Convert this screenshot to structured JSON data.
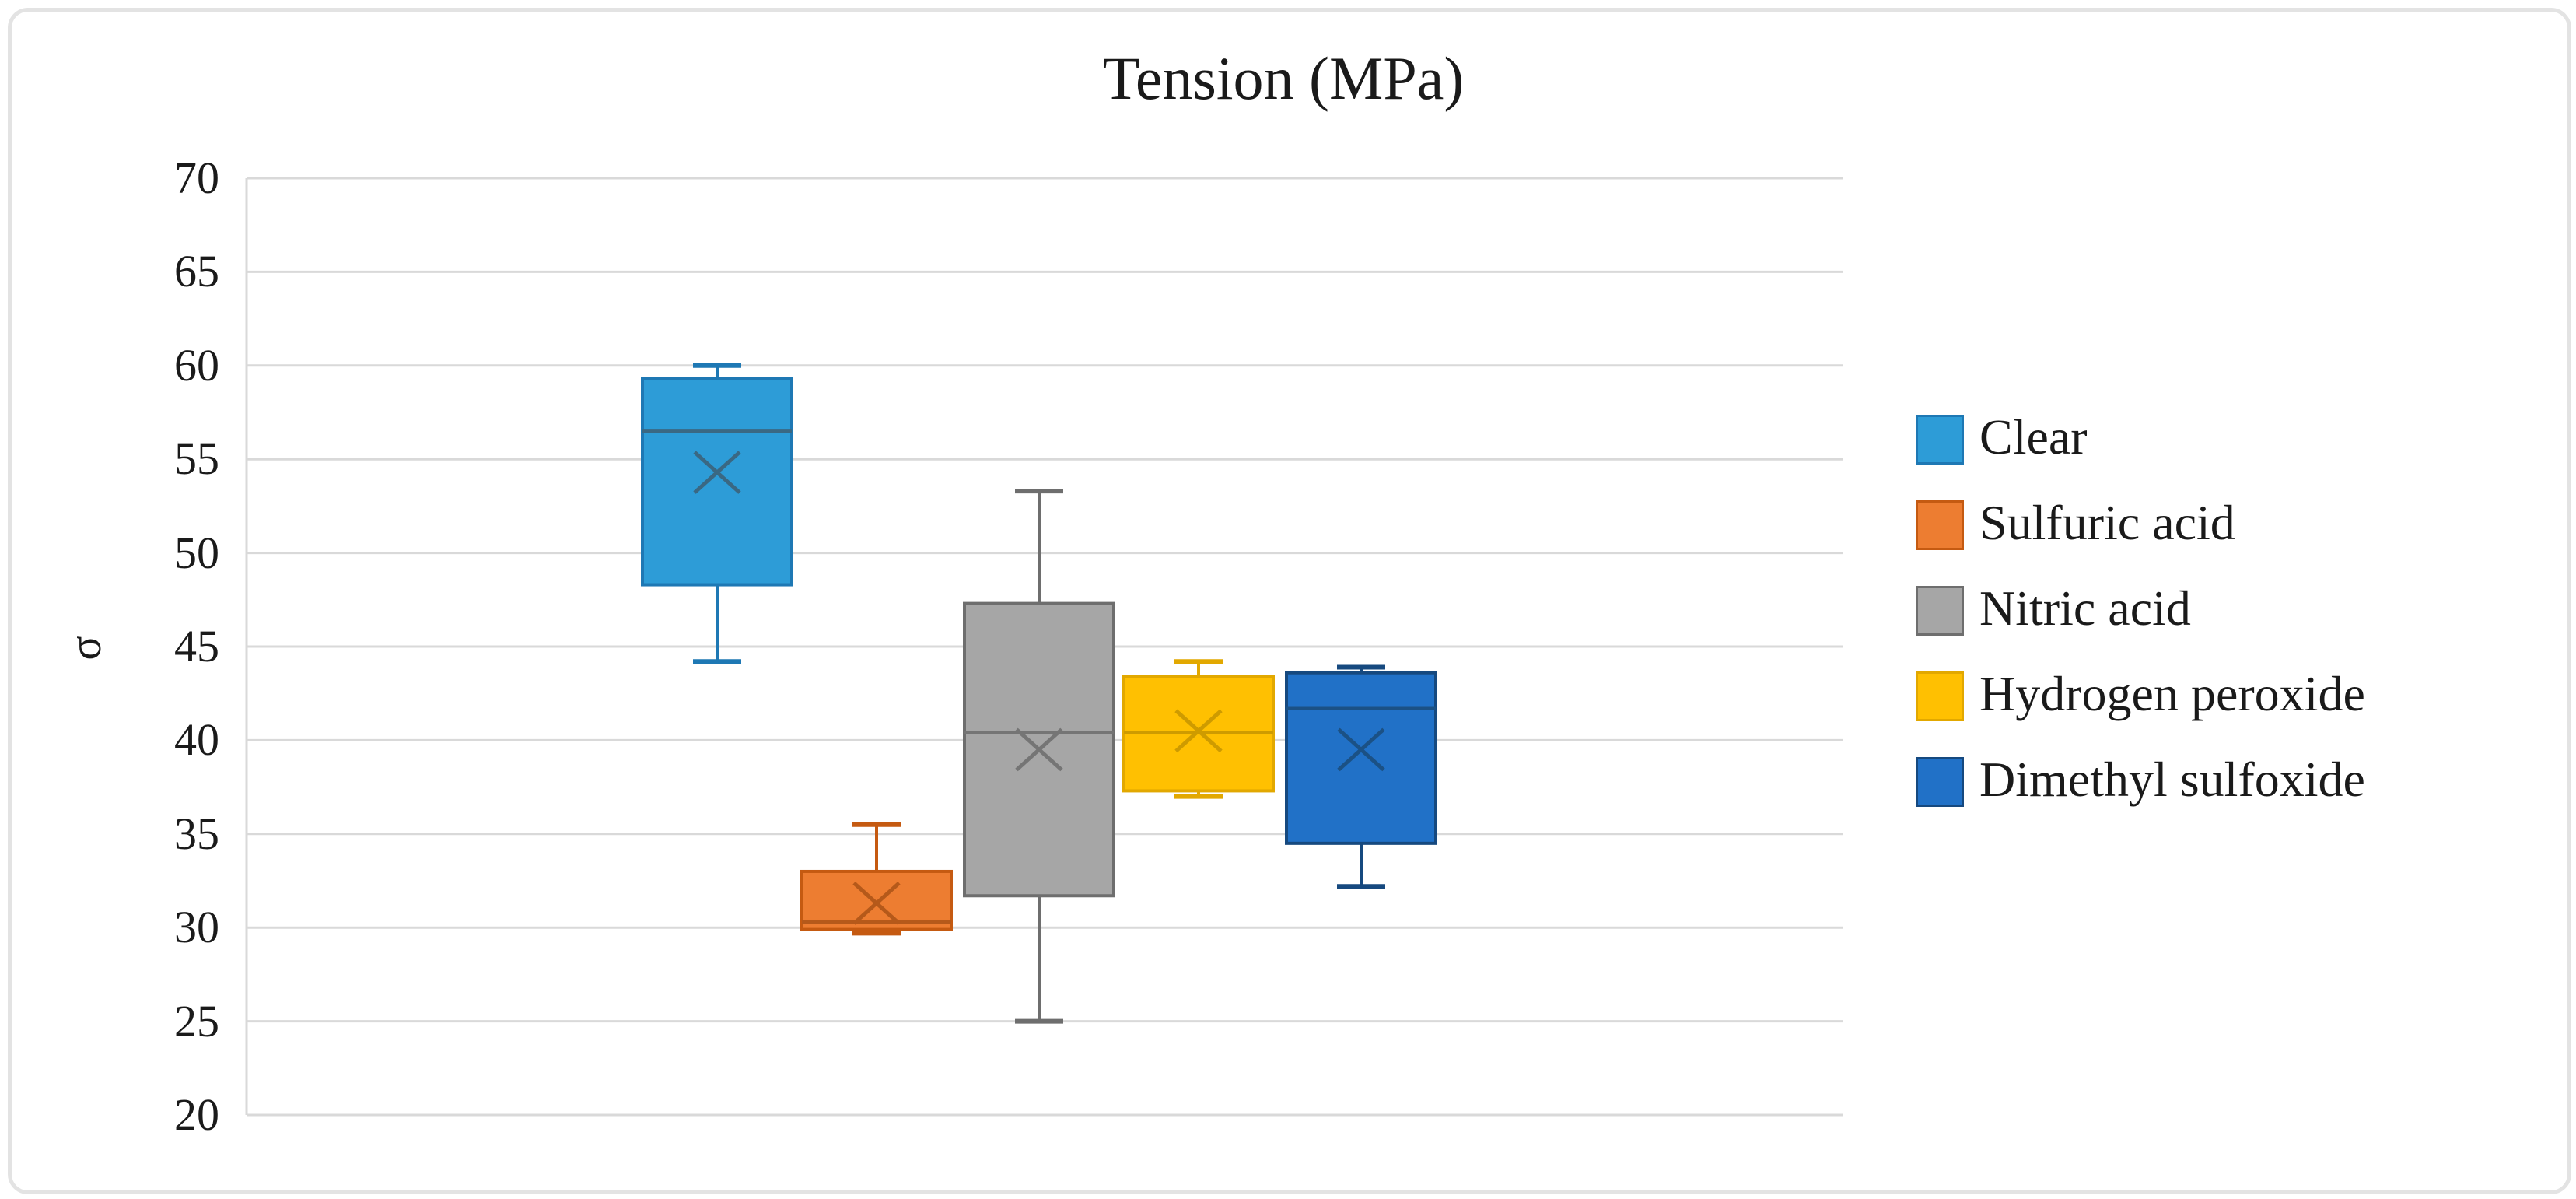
{
  "chart": {
    "title": "Tension (MPa)",
    "y_axis_title": "σ"
  },
  "chart_data": {
    "type": "boxplot",
    "title": "Tension (MPa)",
    "ylabel": "σ",
    "ylim": [
      20,
      70
    ],
    "yticks": [
      70,
      65,
      60,
      55,
      50,
      45,
      40,
      35,
      30,
      25,
      20
    ],
    "grid": true,
    "legend_position": "right",
    "mean_marker": "x",
    "series": [
      {
        "name": "Clear",
        "min": 44.2,
        "q1": 48.3,
        "median": 56.5,
        "q3": 59.3,
        "max": 60.0,
        "mean": 54.3,
        "fill": "#2D9CD7",
        "stroke": "#1E78B4",
        "line": "#3A6883"
      },
      {
        "name": "Sulfuric acid",
        "min": 29.7,
        "q1": 29.9,
        "median": 30.3,
        "q3": 33.0,
        "max": 35.5,
        "mean": 31.3,
        "fill": "#ED7D31",
        "stroke": "#C55A11",
        "line": "#B5591A"
      },
      {
        "name": "Nitric acid",
        "min": 25.0,
        "q1": 31.7,
        "median": 40.4,
        "q3": 47.3,
        "max": 53.3,
        "mean": 39.5,
        "fill": "#A6A6A6",
        "stroke": "#6E6E6E",
        "line": "#757575"
      },
      {
        "name": "Hydrogen peroxide",
        "min": 37.0,
        "q1": 37.3,
        "median": 40.4,
        "q3": 43.4,
        "max": 44.2,
        "mean": 40.5,
        "fill": "#FFC001",
        "stroke": "#E2A800",
        "line": "#CE9B00"
      },
      {
        "name": "Dimethyl sulfoxide",
        "min": 32.2,
        "q1": 34.5,
        "median": 41.7,
        "q3": 43.6,
        "max": 43.9,
        "mean": 39.5,
        "fill": "#2171C7",
        "stroke": "#16497F",
        "line": "#1B5185"
      }
    ],
    "colors": {
      "gridline": "#D9D9D9",
      "axis_line": "#D9D9D9",
      "text": "#1A1A1A",
      "frame_border": "#E3E3E3",
      "background": "#FFFFFF"
    }
  }
}
